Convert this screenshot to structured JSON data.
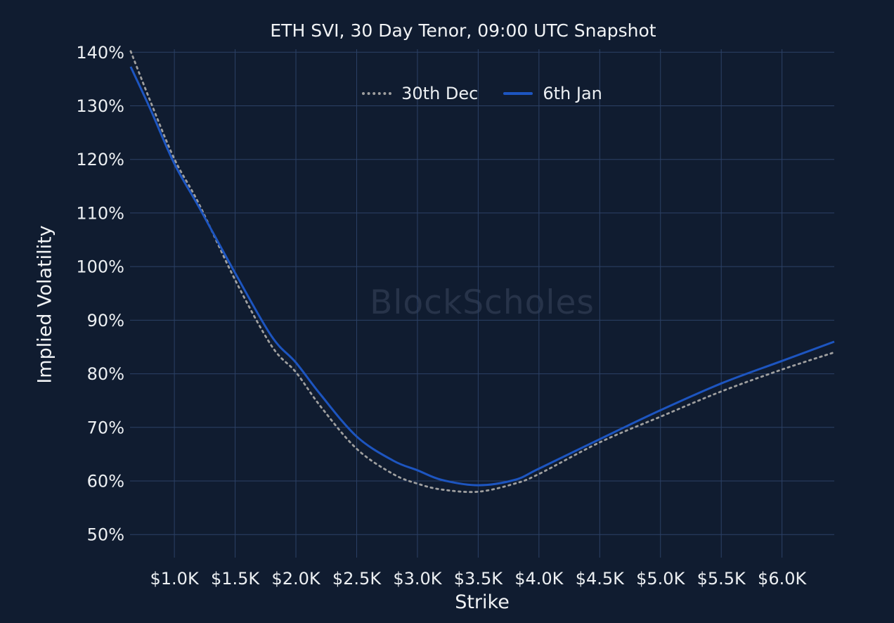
{
  "chart": {
    "title": "ETH SVI, 30 Day Tenor, 09:00 UTC Snapshot",
    "xlabel": "Strike",
    "ylabel": "Implied Volatility"
  },
  "legend": {
    "items": [
      {
        "label": "30th Dec",
        "style": "dotted",
        "color": "#9f9f9f"
      },
      {
        "label": "6th Jan",
        "style": "solid",
        "color": "#1d55c0"
      }
    ]
  },
  "watermark": {
    "text": "BlockScholes"
  },
  "colors": {
    "background": "#101c30",
    "gridline": "#2c4166",
    "tick_text": "#eceff2",
    "series_30th_dec": "#9f9f9f",
    "series_6th_jan": "#1d55c0",
    "watermark": "#273349"
  },
  "chart_data": {
    "type": "line",
    "title": "ETH SVI, 30 Day Tenor, 09:00 UTC Snapshot",
    "xlabel": "Strike",
    "ylabel": "Implied Volatility",
    "x_unit": "USD (thousands)",
    "y_unit": "percent",
    "grid": true,
    "legend_position": "top-center-inside",
    "xlim": [
      0.635,
      6.43
    ],
    "ylim": [
      45.7,
      140.3
    ],
    "x_ticks": [
      {
        "value": 1.0,
        "label": "$1.0K"
      },
      {
        "value": 1.5,
        "label": "$1.5K"
      },
      {
        "value": 2.0,
        "label": "$2.0K"
      },
      {
        "value": 2.5,
        "label": "$2.5K"
      },
      {
        "value": 3.0,
        "label": "$3.0K"
      },
      {
        "value": 3.5,
        "label": "$3.5K"
      },
      {
        "value": 4.0,
        "label": "$4.0K"
      },
      {
        "value": 4.5,
        "label": "$4.5K"
      },
      {
        "value": 5.0,
        "label": "$5.0K"
      },
      {
        "value": 5.5,
        "label": "$5.5K"
      },
      {
        "value": 6.0,
        "label": "$6.0K"
      }
    ],
    "y_ticks": [
      {
        "value": 140,
        "label": "140%"
      },
      {
        "value": 130,
        "label": "130%"
      },
      {
        "value": 120,
        "label": "120%"
      },
      {
        "value": 110,
        "label": "110%"
      },
      {
        "value": 100,
        "label": "100%"
      },
      {
        "value": 90,
        "label": "90%"
      },
      {
        "value": 80,
        "label": "80%"
      },
      {
        "value": 70,
        "label": "70%"
      },
      {
        "value": 60,
        "label": "60%"
      },
      {
        "value": 50,
        "label": "50%"
      }
    ],
    "x": [
      0.64,
      0.8,
      1.0,
      1.2,
      1.5,
      1.8,
      2.0,
      2.2,
      2.5,
      2.8,
      3.0,
      3.2,
      3.5,
      3.8,
      4.0,
      4.5,
      5.0,
      5.5,
      6.0,
      6.43
    ],
    "series": [
      {
        "name": "30th Dec",
        "line_style": "dotted",
        "color": "#9f9f9f",
        "values": [
          140.2,
          131.0,
          120.1,
          111.8,
          97.5,
          85.2,
          80.3,
          74.0,
          66.0,
          61.3,
          59.5,
          58.4,
          58.0,
          59.5,
          61.3,
          67.2,
          72.0,
          76.7,
          80.8,
          84.0
        ]
      },
      {
        "name": "6th Jan",
        "line_style": "solid",
        "color": "#1d55c0",
        "values": [
          137.3,
          129.5,
          119.2,
          111.2,
          98.8,
          87.0,
          82.1,
          76.2,
          68.3,
          63.8,
          62.0,
          60.2,
          59.2,
          60.2,
          62.3,
          67.8,
          73.2,
          78.2,
          82.4,
          86.0
        ]
      }
    ]
  }
}
